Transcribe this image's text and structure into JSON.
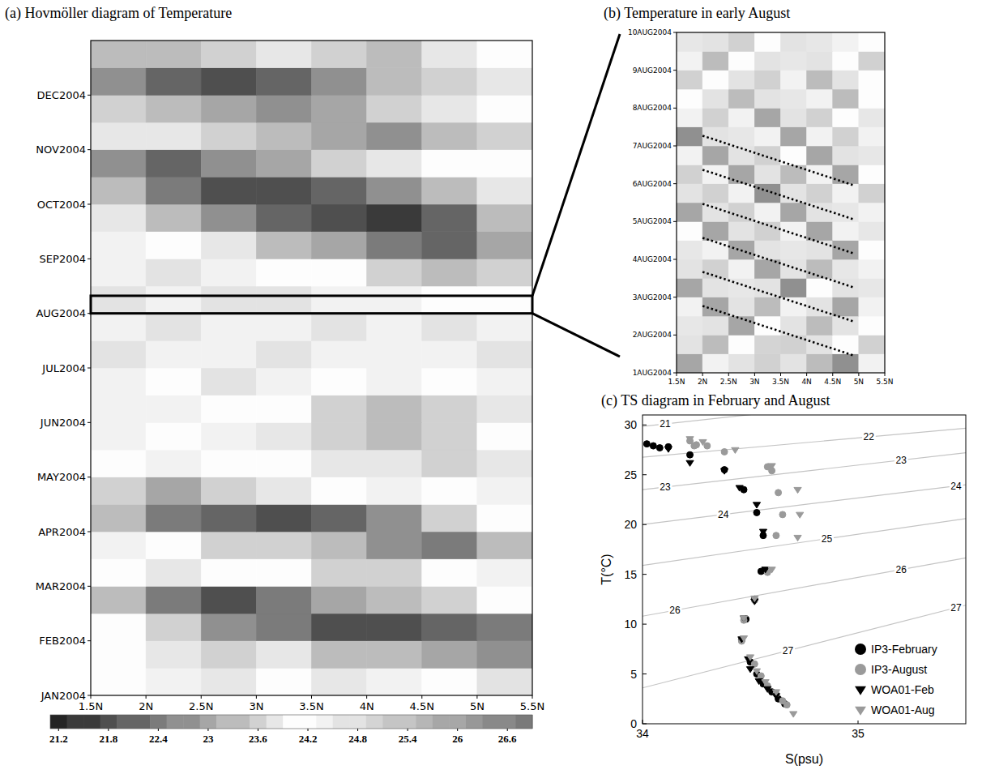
{
  "chart_data": [
    {
      "type": "heatmap",
      "title": "(a) Hovmöller diagram of Temperature",
      "x_edges": [
        1.5,
        2,
        2.5,
        3,
        3.5,
        4,
        4.5,
        5,
        5.5
      ],
      "y_edges": [
        0,
        0.5,
        1,
        1.5,
        2,
        2.5,
        3,
        3.5,
        4,
        4.5,
        5,
        5.5,
        6,
        6.5,
        7,
        7.5,
        8,
        8.5,
        9,
        9.5,
        10,
        10.5,
        11,
        11.5,
        12
      ],
      "cells": [
        [
          24.0,
          24.3,
          23.8,
          24.2,
          23.9,
          24.4,
          24.1,
          24.6
        ],
        [
          24.2,
          23.8,
          23.6,
          23.9,
          23.4,
          23.2,
          23.0,
          22.8
        ],
        [
          24.0,
          23.6,
          22.8,
          22.3,
          21.9,
          21.8,
          22.0,
          22.4
        ],
        [
          23.4,
          22.4,
          21.8,
          22.3,
          22.9,
          23.4,
          23.7,
          24.0
        ],
        [
          24.1,
          23.8,
          24.2,
          24.0,
          23.6,
          23.5,
          24.0,
          24.3
        ],
        [
          24.3,
          24.0,
          23.6,
          23.5,
          23.2,
          22.6,
          22.5,
          23.4
        ],
        [
          23.2,
          22.4,
          22.0,
          21.8,
          22.1,
          22.6,
          23.5,
          24.1
        ],
        [
          23.6,
          23.1,
          23.5,
          23.9,
          24.0,
          24.3,
          24.2,
          24.4
        ],
        [
          24.2,
          24.4,
          24.0,
          24.2,
          23.8,
          23.9,
          23.5,
          23.8
        ],
        [
          24.4,
          24.1,
          24.3,
          23.9,
          23.6,
          23.4,
          23.6,
          24.0
        ],
        [
          24.3,
          24.5,
          24.2,
          24.0,
          23.7,
          23.3,
          23.5,
          23.9
        ],
        [
          24.5,
          24.2,
          24.6,
          24.3,
          24.1,
          24.4,
          24.0,
          24.3
        ],
        [
          24.6,
          24.4,
          24.5,
          24.7,
          24.3,
          24.5,
          24.4,
          24.6
        ],
        [
          24.4,
          24.7,
          24.5,
          24.3,
          24.6,
          24.4,
          24.7,
          24.5
        ],
        [
          24.7,
          24.5,
          24.8,
          24.6,
          24.4,
          24.3,
          24.1,
          24.0
        ],
        [
          24.5,
          24.6,
          24.4,
          24.2,
          24.0,
          23.6,
          23.4,
          23.6
        ],
        [
          24.3,
          24.1,
          23.8,
          23.4,
          22.9,
          22.4,
          22.2,
          23.0
        ],
        [
          23.9,
          23.3,
          22.6,
          22.2,
          21.8,
          21.6,
          22.0,
          23.2
        ],
        [
          23.2,
          22.3,
          21.9,
          21.7,
          22.0,
          22.6,
          23.4,
          23.9
        ],
        [
          22.8,
          22.2,
          22.6,
          23.1,
          23.5,
          23.9,
          24.1,
          24.2
        ],
        [
          23.8,
          23.9,
          23.6,
          23.4,
          23.0,
          22.8,
          23.3,
          23.7
        ],
        [
          23.6,
          23.2,
          22.9,
          22.7,
          23.1,
          23.5,
          23.8,
          24.0
        ],
        [
          22.8,
          22.2,
          21.9,
          22.1,
          22.6,
          23.2,
          23.6,
          23.9
        ],
        [
          23.4,
          23.2,
          23.6,
          23.8,
          23.5,
          23.3,
          23.9,
          24.0
        ]
      ],
      "xlim": [
        1.5,
        5.5
      ],
      "ylim": [
        0,
        12
      ],
      "xticks": [
        {
          "value": 1.5,
          "label": "1.5N"
        },
        {
          "value": 2,
          "label": "2N"
        },
        {
          "value": 2.5,
          "label": "2.5N"
        },
        {
          "value": 3,
          "label": "3N"
        },
        {
          "value": 3.5,
          "label": "3.5N"
        },
        {
          "value": 4,
          "label": "4N"
        },
        {
          "value": 4.5,
          "label": "4.5N"
        },
        {
          "value": 5,
          "label": "5N"
        },
        {
          "value": 5.5,
          "label": "5.5N"
        }
      ],
      "yticks": [
        {
          "value": 0,
          "label": "JAN2004"
        },
        {
          "value": 1,
          "label": "FEB2004"
        },
        {
          "value": 2,
          "label": "MAR2004"
        },
        {
          "value": 3,
          "label": "APR2004"
        },
        {
          "value": 4,
          "label": "MAY2004"
        },
        {
          "value": 5,
          "label": "JUN2004"
        },
        {
          "value": 6,
          "label": "JUL2004"
        },
        {
          "value": 7,
          "label": "AUG2004"
        },
        {
          "value": 8,
          "label": "SEP2004"
        },
        {
          "value": 9,
          "label": "OCT2004"
        },
        {
          "value": 10,
          "label": "NOV2004"
        },
        {
          "value": 11,
          "label": "DEC2004"
        }
      ],
      "colorbar": {
        "range": [
          21.1,
          26.9
        ],
        "ticks": [
          21.2,
          21.8,
          22.4,
          23,
          23.6,
          24.2,
          24.8,
          25.4,
          26,
          26.6
        ]
      }
    },
    {
      "type": "heatmap",
      "title": "(b) Temperature in early August",
      "x_edges": [
        1.5,
        2,
        2.5,
        3,
        3.5,
        4,
        4.5,
        5,
        5.5
      ],
      "y_edges": [
        1,
        1.5,
        2,
        2.5,
        3,
        3.5,
        4,
        4.5,
        5,
        5.5,
        6,
        6.5,
        7,
        7.5,
        8,
        8.5,
        9,
        9.5,
        10
      ],
      "cells": [
        [
          22.9,
          24.5,
          24.8,
          23.6,
          24.7,
          23.2,
          22.8,
          24.3
        ],
        [
          24.6,
          23.4,
          24.2,
          24.9,
          23.5,
          24.6,
          24.1,
          23.7
        ],
        [
          23.8,
          24.7,
          23.1,
          24.0,
          24.6,
          23.3,
          24.8,
          24.2
        ],
        [
          24.4,
          22.9,
          24.6,
          23.2,
          24.3,
          24.7,
          23.0,
          24.5
        ],
        [
          23.1,
          24.6,
          23.9,
          24.7,
          22.8,
          24.2,
          24.6,
          23.8
        ],
        [
          24.7,
          23.6,
          24.5,
          23.0,
          24.6,
          23.4,
          23.9,
          24.4
        ],
        [
          23.9,
          24.3,
          22.9,
          24.6,
          23.8,
          24.8,
          23.1,
          24.2
        ],
        [
          24.2,
          23.0,
          24.7,
          23.5,
          24.4,
          22.9,
          24.5,
          23.9
        ],
        [
          23.0,
          24.8,
          23.6,
          24.3,
          23.1,
          24.6,
          23.8,
          24.4
        ],
        [
          24.6,
          23.5,
          24.4,
          22.8,
          24.7,
          23.7,
          24.3,
          23.6
        ],
        [
          23.7,
          24.4,
          23.0,
          24.7,
          23.4,
          24.5,
          22.9,
          24.1
        ],
        [
          24.3,
          22.9,
          24.6,
          23.6,
          24.2,
          23.0,
          24.6,
          23.9
        ],
        [
          22.8,
          24.7,
          23.8,
          24.5,
          22.9,
          24.4,
          23.7,
          24.3
        ],
        [
          24.5,
          23.7,
          24.3,
          23.1,
          24.8,
          23.6,
          24.2,
          23.8
        ],
        [
          24.0,
          24.6,
          23.2,
          24.6,
          23.9,
          24.5,
          23.4,
          24.0
        ],
        [
          23.6,
          24.1,
          24.8,
          23.7,
          24.3,
          23.4,
          24.6,
          24.2
        ],
        [
          24.4,
          23.4,
          24.2,
          24.6,
          23.8,
          24.6,
          24.0,
          23.7
        ],
        [
          23.9,
          24.6,
          23.7,
          24.1,
          24.7,
          23.9,
          24.3,
          24.1
        ]
      ],
      "xlim": [
        1.5,
        5.5
      ],
      "ylim": [
        1,
        10
      ],
      "xticks": [
        {
          "value": 1.5,
          "label": "1.5N"
        },
        {
          "value": 2,
          "label": "2N"
        },
        {
          "value": 2.5,
          "label": "2.5N"
        },
        {
          "value": 3,
          "label": "3N"
        },
        {
          "value": 3.5,
          "label": "3.5N"
        },
        {
          "value": 4,
          "label": "4N"
        },
        {
          "value": 4.5,
          "label": "4.5N"
        },
        {
          "value": 5,
          "label": "5N"
        },
        {
          "value": 5.5,
          "label": "5.5N"
        }
      ],
      "yticks": [
        {
          "value": 1,
          "label": "1AUG2004"
        },
        {
          "value": 2,
          "label": "2AUG2004"
        },
        {
          "value": 3,
          "label": "3AUG2004"
        },
        {
          "value": 4,
          "label": "4AUG2004"
        },
        {
          "value": 5,
          "label": "5AUG2004"
        },
        {
          "value": 6,
          "label": "6AUG2004"
        },
        {
          "value": 7,
          "label": "7AUG2004"
        },
        {
          "value": 8,
          "label": "8AUG2004"
        },
        {
          "value": 9,
          "label": "9AUG2004"
        },
        {
          "value": 10,
          "label": "10AUG2004"
        }
      ],
      "series": [
        {
          "type": "line",
          "line_style": "dotted",
          "color": "#000000",
          "x": [
            2.0,
            4.9
          ],
          "values": [
            2.77,
            1.46
          ]
        },
        {
          "type": "line",
          "line_style": "dotted",
          "color": "#000000",
          "x": [
            2.0,
            4.9
          ],
          "values": [
            3.67,
            2.36
          ]
        },
        {
          "type": "line",
          "line_style": "dotted",
          "color": "#000000",
          "x": [
            2.0,
            4.9
          ],
          "values": [
            4.57,
            3.26
          ]
        },
        {
          "type": "line",
          "line_style": "dotted",
          "color": "#000000",
          "x": [
            2.0,
            4.9
          ],
          "values": [
            5.47,
            4.16
          ]
        },
        {
          "type": "line",
          "line_style": "dotted",
          "color": "#000000",
          "x": [
            2.0,
            4.9
          ],
          "values": [
            6.37,
            5.06
          ]
        },
        {
          "type": "line",
          "line_style": "dotted",
          "color": "#000000",
          "x": [
            2.0,
            4.9
          ],
          "values": [
            7.27,
            5.96
          ]
        }
      ]
    },
    {
      "type": "scatter",
      "title": "(c) TS diagram in February and August",
      "x_label": "S(psu)",
      "y_label": "T(°C)",
      "xlim": [
        34,
        35.5
      ],
      "ylim": [
        0,
        31
      ],
      "xticks": [
        34,
        35
      ],
      "yticks": [
        0,
        5,
        10,
        15,
        20,
        25,
        30
      ],
      "legend": "lower right",
      "isopycnals": [
        {
          "label": "21",
          "S": [
            34,
            35.5
          ],
          "T": [
            29.85,
            33.4
          ]
        },
        {
          "label": "22",
          "S": [
            34,
            35.5
          ],
          "T": [
            26.76,
            29.66
          ]
        },
        {
          "label": "23",
          "S": [
            34,
            35.5
          ],
          "T": [
            23.5,
            27.2
          ]
        },
        {
          "label": "24",
          "S": [
            34,
            35.5
          ],
          "T": [
            20.0,
            24.0
          ]
        },
        {
          "label": "25",
          "S": [
            34,
            35.5
          ],
          "T": [
            15.9,
            20.6
          ]
        },
        {
          "label": "26",
          "S": [
            34,
            35.5
          ],
          "T": [
            10.8,
            16.65
          ]
        },
        {
          "label": "27",
          "S": [
            34,
            35.5
          ],
          "T": [
            3.6,
            11.9
          ]
        }
      ],
      "series": [
        {
          "name": "IP3-February",
          "color": "#000000",
          "marker": "circle",
          "x": [
            34.02,
            34.05,
            34.08,
            34.12,
            34.22,
            34.38,
            34.47,
            34.53,
            34.56,
            34.55,
            34.52,
            34.48,
            34.46,
            34.5,
            34.53,
            34.56,
            34.6,
            34.63,
            34.66
          ],
          "values": [
            28.1,
            27.9,
            27.7,
            27.8,
            27.0,
            25.5,
            23.5,
            21.2,
            18.9,
            15.3,
            12.5,
            10.5,
            8.4,
            6.2,
            5.0,
            4.0,
            3.2,
            2.5,
            2.0
          ]
        },
        {
          "name": "IP3-August",
          "color": "#9a9a9a",
          "marker": "circle",
          "x": [
            34.22,
            34.25,
            34.24,
            34.3,
            34.38,
            34.58,
            34.6,
            34.63,
            34.65,
            34.62,
            34.58,
            34.52,
            34.47,
            34.46,
            34.52,
            34.55,
            34.58,
            34.62,
            34.65,
            34.67
          ],
          "values": [
            28.4,
            28.0,
            27.9,
            27.9,
            27.3,
            25.8,
            25.4,
            23.2,
            21.0,
            18.9,
            15.2,
            12.4,
            10.4,
            8.3,
            6.0,
            4.8,
            3.8,
            3.0,
            2.3,
            1.9
          ]
        },
        {
          "name": "WOA01-Feb",
          "color": "#000000",
          "marker": "triangle-down",
          "x": [
            34.12,
            34.22,
            34.38,
            34.45,
            34.53,
            34.56,
            34.57,
            34.52,
            34.47,
            34.46,
            34.49,
            34.5,
            34.54,
            34.58,
            34.62
          ],
          "values": [
            27.6,
            26.2,
            25.4,
            23.7,
            22.0,
            19.3,
            15.5,
            12.3,
            10.6,
            8.5,
            6.5,
            5.5,
            4.3,
            3.5,
            2.8
          ]
        },
        {
          "name": "WOA01-Aug",
          "color": "#9a9a9a",
          "marker": "triangle-down",
          "x": [
            34.22,
            34.28,
            34.43,
            34.6,
            34.72,
            34.73,
            34.72,
            34.6,
            34.52,
            34.47,
            34.47,
            34.5,
            34.53,
            34.57,
            34.62,
            34.7
          ],
          "values": [
            28.6,
            28.3,
            27.5,
            25.9,
            23.5,
            21.0,
            18.7,
            15.5,
            12.6,
            10.6,
            8.6,
            6.7,
            5.3,
            4.2,
            3.2,
            1.0
          ]
        }
      ]
    }
  ]
}
